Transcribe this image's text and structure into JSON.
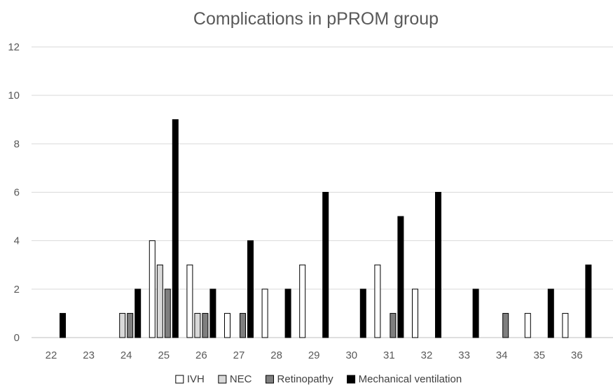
{
  "chart_data": {
    "type": "bar",
    "title": "Complications in pPROM group",
    "xlabel": "",
    "ylabel": "",
    "ylim": [
      0,
      12
    ],
    "yticks": [
      0,
      2,
      4,
      6,
      8,
      10,
      12
    ],
    "grid": true,
    "legend_position": "bottom",
    "categories": [
      "22",
      "23",
      "24",
      "25",
      "26",
      "27",
      "28",
      "29",
      "30",
      "31",
      "32",
      "33",
      "34",
      "35",
      "36"
    ],
    "series": [
      {
        "name": "IVH",
        "color": "#ffffff",
        "values": [
          0,
          0,
          0,
          4,
          3,
          1,
          2,
          3,
          0,
          3,
          2,
          0,
          0,
          1,
          1
        ]
      },
      {
        "name": "NEC",
        "color": "#d9d9d9",
        "values": [
          0,
          0,
          1,
          3,
          1,
          0,
          0,
          0,
          0,
          0,
          0,
          0,
          0,
          0,
          0
        ]
      },
      {
        "name": "Retinopathy",
        "color": "#7f7f7f",
        "values": [
          0,
          0,
          1,
          2,
          1,
          1,
          0,
          0,
          0,
          1,
          0,
          0,
          1,
          0,
          0
        ]
      },
      {
        "name": "Mechanical ventilation",
        "color": "#000000",
        "values": [
          1,
          0,
          2,
          9,
          2,
          4,
          2,
          6,
          2,
          5,
          6,
          2,
          0,
          2,
          3
        ]
      }
    ]
  }
}
